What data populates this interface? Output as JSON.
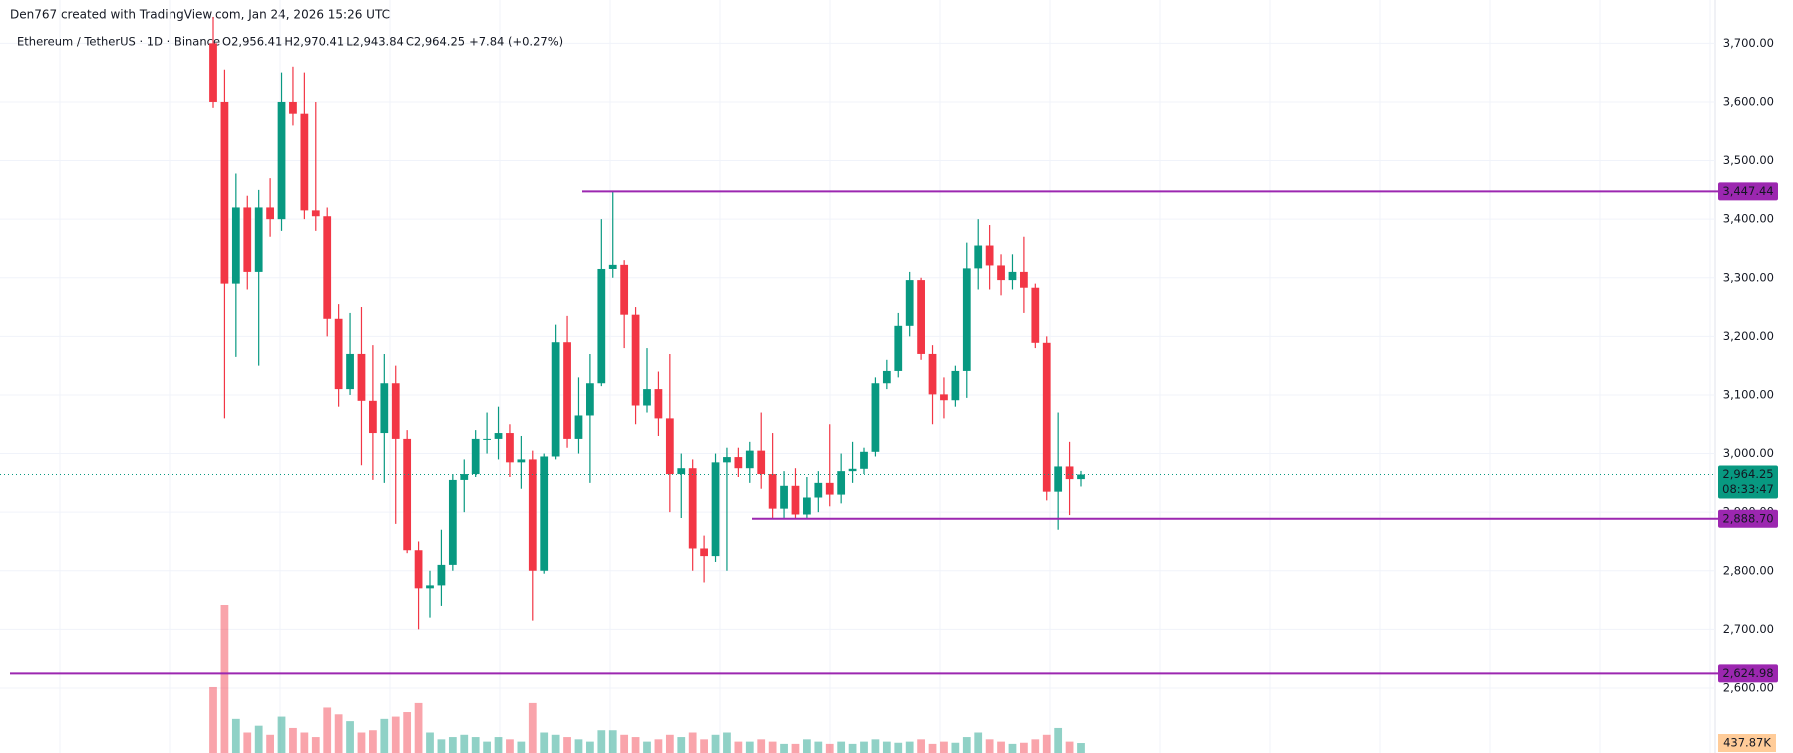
{
  "chart_data": {
    "type": "candlestick",
    "watermark": "Den767 created with TradingView.com, Jan 24, 2026 15:26 UTC",
    "legend": {
      "symbol": "Ethereum / TetherUS · 1D · Binance",
      "items": [
        {
          "key": "O",
          "value": "2,956.41"
        },
        {
          "key": "H",
          "value": "2,970.41"
        },
        {
          "key": "L",
          "value": "2,943.84"
        },
        {
          "key": "C",
          "value": "2,964.25"
        }
      ],
      "change": "+7.84 (+0.27%)"
    },
    "up_color": "#089981",
    "down_color": "#f23645",
    "line_color": "#9c27b0",
    "ylim": [
      2489,
      3774
    ],
    "yticks": [
      {
        "value": 2600,
        "label": "2,600.00"
      },
      {
        "value": 2700,
        "label": "2,700.00"
      },
      {
        "value": 2800,
        "label": "2,800.00"
      },
      {
        "value": 2900,
        "label": "2,900.00"
      },
      {
        "value": 3000,
        "label": "3,000.00"
      },
      {
        "value": 3100,
        "label": "3,100.00"
      },
      {
        "value": 3200,
        "label": "3,200.00"
      },
      {
        "value": 3300,
        "label": "3,300.00"
      },
      {
        "value": 3400,
        "label": "3,400.00"
      },
      {
        "value": 3500,
        "label": "3,500.00"
      },
      {
        "value": 3600,
        "label": "3,600.00"
      },
      {
        "value": 3700,
        "label": "3,700.00"
      }
    ],
    "price_lines": [
      {
        "value": 3447.44,
        "label": "3,447.44"
      },
      {
        "value": 2888.7,
        "label": "2,888.70"
      },
      {
        "value": 2624.98,
        "label": "2,624.98"
      }
    ],
    "last_price": {
      "value": 2964.25,
      "label": "2,964.25",
      "countdown": "08:33:47"
    },
    "open": [
      3700,
      3600,
      3290,
      3420,
      3310,
      3420,
      3400,
      3600,
      3580,
      3415,
      3405,
      3230,
      3110,
      3170,
      3090,
      3035,
      3120,
      3025,
      2835,
      2770,
      2775,
      2810,
      2955,
      2965,
      3025,
      3025,
      3035,
      2985,
      2990,
      2800,
      2995,
      3190,
      3025,
      3065,
      3120,
      3315,
      3322,
      3237,
      3082,
      3110,
      3060,
      2965,
      2975,
      2838,
      2825,
      2985,
      2994,
      2975,
      3005,
      2965,
      2906,
      2945,
      2896,
      2925,
      2950,
      2930,
      2970,
      2974,
      3003,
      3120,
      3141,
      3218,
      3296,
      3170,
      3101,
      3091,
      3141,
      3316,
      3355,
      3321,
      3296,
      3310,
      3283,
      3189,
      2935,
      2978,
      2956.41
    ],
    "high": [
      3745,
      3655,
      3478,
      3440,
      3450,
      3470,
      3650,
      3660,
      3650,
      3600,
      3420,
      3255,
      3240,
      3250,
      3185,
      3170,
      3150,
      3040,
      2850,
      2800,
      2870,
      2965,
      2990,
      3040,
      3070,
      3080,
      3050,
      3030,
      3005,
      3000,
      3220,
      3235,
      3130,
      3170,
      3400,
      3447.44,
      3330,
      3250,
      3180,
      3140,
      3170,
      3000,
      2990,
      2860,
      3000,
      3010,
      3010,
      3020,
      3070,
      3035,
      2970,
      2975,
      2960,
      2970,
      3050,
      3000,
      3020,
      3010,
      3130,
      3160,
      3240,
      3310,
      3300,
      3185,
      3130,
      3150,
      3360,
      3400,
      3390,
      3340,
      3340,
      3370,
      3290,
      3200,
      3070,
      3020,
      2970.41
    ],
    "low": [
      3590,
      3060,
      3165,
      3280,
      3150,
      3370,
      3380,
      3560,
      3400,
      3380,
      3200,
      3080,
      3100,
      2980,
      2955,
      2950,
      2880,
      2830,
      2700,
      2720,
      2740,
      2800,
      2900,
      2960,
      3000,
      2990,
      2960,
      2940,
      2715,
      2795,
      2990,
      3010,
      3000,
      2950,
      3115,
      3300,
      3180,
      3050,
      3070,
      3030,
      2900,
      2890,
      2800,
      2780,
      2815,
      2800,
      2960,
      2950,
      2940,
      2890,
      2890,
      2890,
      2890,
      2900,
      2910,
      2915,
      2950,
      2965,
      2995,
      3110,
      3130,
      3200,
      3160,
      3050,
      3060,
      3080,
      3095,
      3280,
      3280,
      3270,
      3280,
      3240,
      3180,
      2920,
      2870,
      2895,
      2943.84
    ],
    "close": [
      3600,
      3290,
      3420,
      3310,
      3420,
      3400,
      3600,
      3580,
      3415,
      3405,
      3230,
      3110,
      3170,
      3090,
      3035,
      3120,
      3025,
      2835,
      2770,
      2775,
      2810,
      2955,
      2965,
      3025,
      3025,
      3035,
      2985,
      2990,
      2800,
      2995,
      3190,
      3025,
      3065,
      3120,
      3315,
      3322,
      3237,
      3082,
      3110,
      3060,
      2965,
      2975,
      2838,
      2825,
      2985,
      2994,
      2975,
      3005,
      2965,
      2906,
      2945,
      2896,
      2925,
      2950,
      2930,
      2970,
      2974,
      3003,
      3120,
      3141,
      3218,
      3296,
      3170,
      3101,
      3091,
      3141,
      3316,
      3355,
      3321,
      3296,
      3310,
      3283,
      3189,
      2935,
      2978,
      2956.41,
      2964.25
    ],
    "volume": [
      2900,
      6500,
      1500,
      900,
      1200,
      800,
      1600,
      1100,
      900,
      700,
      2000,
      1700,
      1400,
      900,
      1000,
      1500,
      1600,
      1800,
      2200,
      900,
      600,
      700,
      800,
      700,
      500,
      700,
      600,
      500,
      2200,
      900,
      800,
      700,
      600,
      500,
      1000,
      1000,
      800,
      700,
      500,
      600,
      800,
      700,
      900,
      600,
      800,
      900,
      500,
      500,
      600,
      500,
      400,
      400,
      600,
      500,
      400,
      500,
      400,
      500,
      600,
      500,
      450,
      500,
      600,
      400,
      500,
      450,
      700,
      900,
      600,
      500,
      400,
      450,
      600,
      800,
      1100,
      500,
      437.87
    ],
    "volume_label": "437.87K"
  }
}
